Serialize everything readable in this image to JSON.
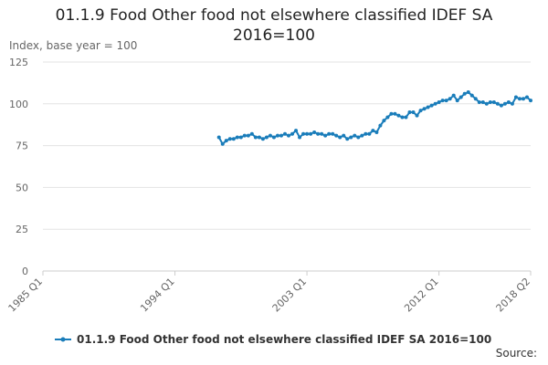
{
  "chart_data": {
    "type": "line",
    "title": "01.1.9 Food Other food not elsewhere classified IDEF SA 2016=100",
    "y_label": "Index, base year = 100",
    "source": "Source:",
    "categories": [
      "1985 Q1",
      null,
      null,
      null,
      null,
      null,
      null,
      null,
      null,
      null,
      null,
      null,
      null,
      null,
      null,
      null,
      null,
      null,
      null,
      null,
      null,
      null,
      null,
      null,
      null,
      null,
      null,
      null,
      null,
      null,
      null,
      null,
      null,
      null,
      null,
      null,
      "1994 Q1",
      null,
      null,
      null,
      null,
      null,
      null,
      null,
      null,
      null,
      null,
      null,
      null,
      null,
      null,
      null,
      null,
      null,
      null,
      null,
      null,
      null,
      null,
      null,
      null,
      null,
      null,
      null,
      null,
      null,
      null,
      null,
      null,
      null,
      null,
      null,
      "2003 Q1",
      null,
      null,
      null,
      null,
      null,
      null,
      null,
      null,
      null,
      null,
      null,
      null,
      null,
      null,
      null,
      null,
      null,
      null,
      null,
      null,
      null,
      null,
      null,
      null,
      null,
      null,
      null,
      null,
      null,
      null,
      null,
      null,
      null,
      null,
      null,
      "2012 Q1",
      null,
      null,
      null,
      null,
      null,
      null,
      null,
      null,
      null,
      null,
      null,
      null,
      null,
      null,
      null,
      null,
      null,
      null,
      null,
      null,
      null,
      null,
      null,
      null,
      "2018 Q2"
    ],
    "series": [
      {
        "name": "01.1.9 Food Other food not elsewhere classified IDEF SA 2016=100",
        "color": "#1a7dba",
        "values": [
          null,
          null,
          null,
          null,
          null,
          null,
          null,
          null,
          null,
          null,
          null,
          null,
          null,
          null,
          null,
          null,
          null,
          null,
          null,
          null,
          null,
          null,
          null,
          null,
          null,
          null,
          null,
          null,
          null,
          null,
          null,
          null,
          null,
          null,
          null,
          null,
          null,
          null,
          null,
          null,
          null,
          null,
          null,
          null,
          null,
          null,
          null,
          null,
          80,
          76,
          78,
          79,
          79,
          80,
          80,
          81,
          81,
          82,
          80,
          80,
          79,
          80,
          81,
          80,
          81,
          81,
          82,
          81,
          82,
          84,
          80,
          82,
          82,
          82,
          83,
          82,
          82,
          81,
          82,
          82,
          81,
          80,
          81,
          79,
          80,
          81,
          80,
          81,
          82,
          82,
          84,
          83,
          87,
          90,
          92,
          94,
          94,
          93,
          92,
          92,
          95,
          95,
          93,
          96,
          97,
          98,
          99,
          100,
          101,
          102,
          102,
          103,
          105,
          102,
          104,
          106,
          107,
          105,
          103,
          101,
          101,
          100,
          101,
          101,
          100,
          99,
          100,
          101,
          100,
          104,
          103,
          103,
          104,
          102
        ]
      }
    ],
    "ylim": [
      0,
      125
    ],
    "yticks": [
      0,
      25,
      50,
      75,
      100,
      125
    ],
    "grid": true,
    "legend": "bottom"
  }
}
